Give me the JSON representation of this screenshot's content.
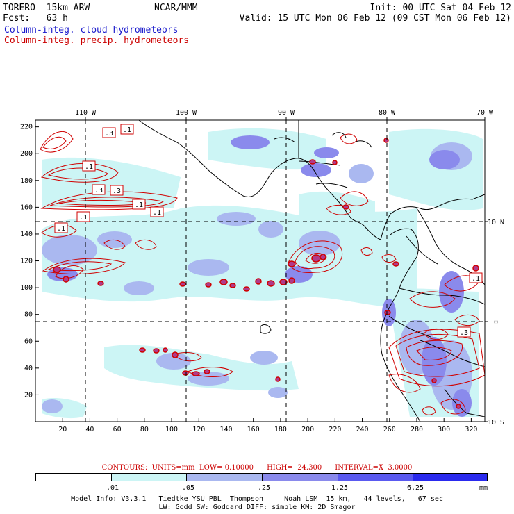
{
  "header": {
    "model": "TORERO  15km ARW",
    "org": "NCAR/MMM",
    "init": "Init: 00 UTC Sat 04 Feb 12",
    "fcst": "Fcst:   63 h",
    "valid": "Valid: 15 UTC Mon 06 Feb 12 (09 CST Mon 06 Feb 12)"
  },
  "legend": {
    "cloud": "Column-integ. cloud hydrometeors",
    "cloud_color": "#1a1acc",
    "precip": "Column-integ. precip. hydrometeors",
    "precip_color": "#cc0000"
  },
  "map": {
    "lon_labels": [
      "110 W",
      "100 W",
      "90 W",
      "80 W",
      "70 W"
    ],
    "lat_labels": [
      "10 N",
      "0",
      "10 S"
    ],
    "x_ticks": [
      "20",
      "40",
      "60",
      "80",
      "100",
      "120",
      "140",
      "160",
      "180",
      "200",
      "220",
      "240",
      "260",
      "280",
      "300",
      "320"
    ],
    "y_ticks": [
      "20",
      "40",
      "60",
      "80",
      "100",
      "120",
      "140",
      "160",
      "180",
      "200",
      "220"
    ],
    "contour_labels": [
      ".3",
      ".1",
      ".1",
      ".3",
      ".3",
      ".1",
      ".1",
      ".1",
      ".1",
      ".1",
      ".3"
    ]
  },
  "footer": {
    "contours": "CONTOURS:  UNITS=mm  LOW= 0.10000      HIGH=  24.300      INTERVAL=X  3.0000",
    "colorbar": {
      "labels": [
        ".01",
        ".05",
        ".25",
        "1.25",
        "6.25"
      ],
      "unit": "mm",
      "colors": [
        "#ffffff",
        "#ccf5f5",
        "#aab8f0",
        "#8a8aec",
        "#5a5af0",
        "#2a2aee"
      ]
    },
    "model_info_1": "Model Info: V3.3.1   Tiedtke YSU PBL  Thompson     Noah LSM  15 km,   44 levels,   67 sec",
    "model_info_2": "LW: Godd SW: Goddard DIFF: simple KM: 2D Smagor"
  }
}
